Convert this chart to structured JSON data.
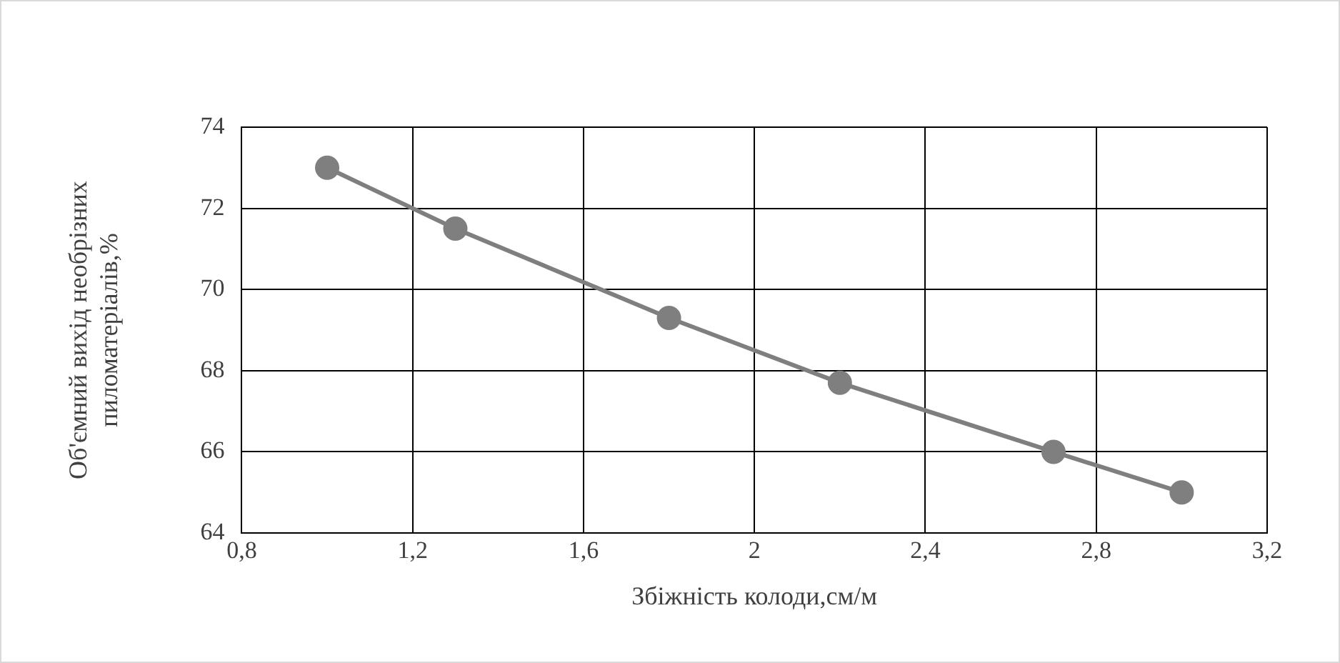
{
  "chart_data": {
    "type": "line",
    "xlabel": "Збіжність колоди,см/м",
    "ylabel": "Об'ємний вихід необрізних\nпиломатеріалів,%",
    "x": [
      1,
      1.3,
      1.8,
      2.2,
      2.7,
      3
    ],
    "series": [
      {
        "color": "#7f7f7f",
        "values": [
          73,
          71.5,
          69.3,
          67.7,
          66,
          65
        ]
      }
    ],
    "xlim": [
      0.8,
      3.2
    ],
    "xticks": [
      {
        "value": 0.8,
        "label": "0,8"
      },
      {
        "value": 1.2,
        "label": "1,2"
      },
      {
        "value": 1.6,
        "label": "1,6"
      },
      2,
      {
        "value": 2.4,
        "label": "2,4"
      },
      {
        "value": 2.8,
        "label": "2,8"
      },
      {
        "value": 3.2,
        "label": "3,2"
      }
    ],
    "ylim": [
      64,
      74
    ],
    "yticks": [
      64,
      66,
      68,
      70,
      72,
      74
    ],
    "grid": true,
    "legend": false,
    "marker": "circle",
    "line_style": "solid"
  }
}
